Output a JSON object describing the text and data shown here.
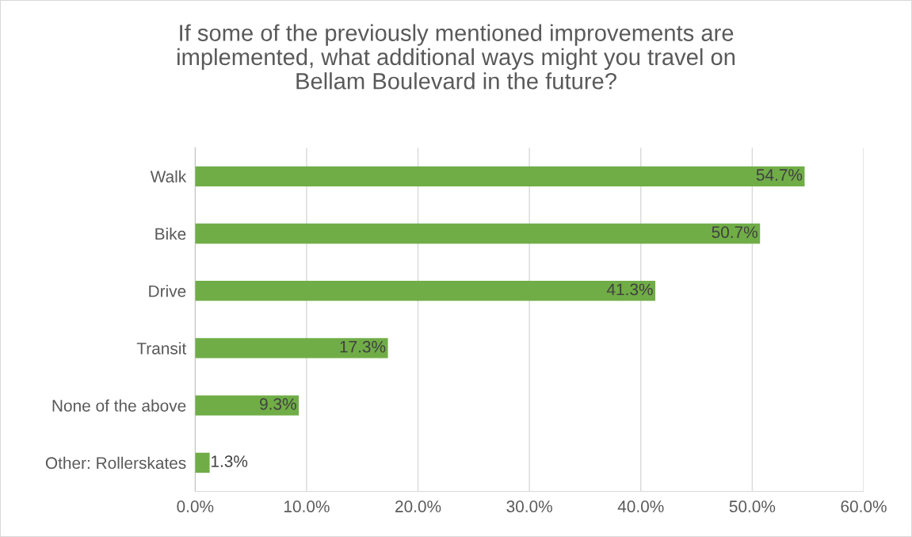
{
  "chart_data": {
    "type": "bar",
    "orientation": "horizontal",
    "title": "If some of the previously mentioned improvements are\nimplemented, what additional ways might you travel on\nBellam Boulevard in the future?",
    "categories": [
      "Walk",
      "Bike",
      "Drive",
      "Transit",
      "None of the above",
      "Other: Rollerskates"
    ],
    "values": [
      54.7,
      50.7,
      41.3,
      17.3,
      9.3,
      1.3
    ],
    "value_labels": [
      "54.7%",
      "50.7%",
      "41.3%",
      "17.3%",
      "9.3%",
      "1.3%"
    ],
    "color": "#70ad47",
    "xlim": [
      0,
      60
    ],
    "xticks": [
      {
        "value": 0,
        "label": "0.0%"
      },
      {
        "value": 10,
        "label": "10.0%"
      },
      {
        "value": 20,
        "label": "20.0%"
      },
      {
        "value": 30,
        "label": "30.0%"
      },
      {
        "value": 40,
        "label": "40.0%"
      },
      {
        "value": 50,
        "label": "50.0%"
      },
      {
        "value": 60,
        "label": "60.0%"
      }
    ],
    "grid": "x",
    "legend": false
  }
}
